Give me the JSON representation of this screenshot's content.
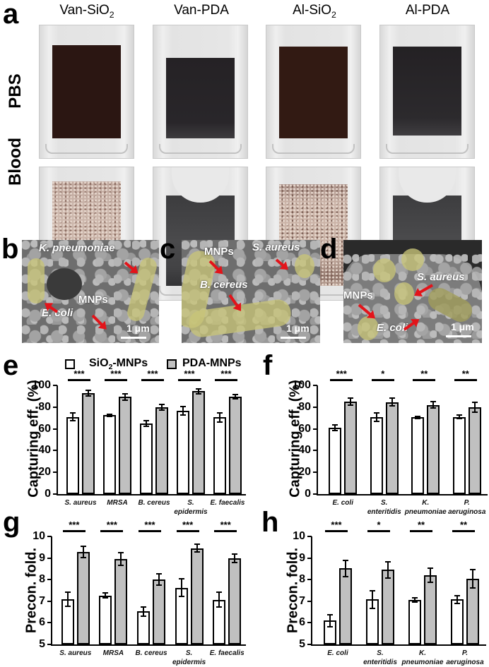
{
  "panel_a": {
    "letter": "a",
    "columns": [
      "Van-SiO2",
      "Van-PDA",
      "Al-SiO2",
      "Al-PDA"
    ],
    "rows": [
      "PBS",
      "Blood"
    ]
  },
  "panel_b": {
    "letter": "b",
    "labels": {
      "k_pneumoniae": "K. pneumoniae",
      "e_coli": "E. coli",
      "mnps": "MNPs"
    },
    "scale": "1 μm"
  },
  "panel_c": {
    "letter": "c",
    "labels": {
      "mnps": "MNPs",
      "s_aureus": "S. aureus",
      "b_cereus": "B. cereus"
    },
    "scale": "1 μm"
  },
  "panel_d": {
    "letter": "d",
    "labels": {
      "s_aureus": "S. aureus",
      "mnps": "MNPs",
      "e_coli": "E. coli"
    },
    "scale": "1 μm"
  },
  "legend": {
    "sio2": "SiO2-MNPs",
    "pda": "PDA-MNPs"
  },
  "colors": {
    "sio2_bar": "#ffffff",
    "pda_bar": "#c0c0c0",
    "arrow": "#e3141a",
    "bacteria_overlay": "#c8c478"
  },
  "chart_data": [
    {
      "panel": "e",
      "type": "bar",
      "ylabel": "Capturing eff. (%)",
      "ylim": [
        0,
        100
      ],
      "yticks": [
        0,
        20,
        40,
        60,
        80,
        100
      ],
      "categories": [
        "S. aureus",
        "MRSA",
        "B. cereus",
        "S. epidermis",
        "E. faecalis"
      ],
      "series": [
        {
          "name": "SiO2-MNPs",
          "values": [
            71,
            72.5,
            65,
            76.5,
            70.5
          ],
          "errors": [
            3.5,
            1,
            2.5,
            4,
            4
          ]
        },
        {
          "name": "PDA-MNPs",
          "values": [
            93,
            89.5,
            80,
            94.5,
            89.5
          ],
          "errors": [
            2.5,
            3,
            2.5,
            2,
            2
          ]
        }
      ],
      "significance": [
        "***",
        "***",
        "***",
        "***",
        "***"
      ]
    },
    {
      "panel": "f",
      "type": "bar",
      "ylabel": "Capturing eff. (%)",
      "ylim": [
        0,
        100
      ],
      "yticks": [
        0,
        20,
        40,
        60,
        80,
        100
      ],
      "categories": [
        "E. coli",
        "S. enteritidis",
        "K. pneumoniae",
        "P. aeruginosa"
      ],
      "series": [
        {
          "name": "SiO2-MNPs",
          "values": [
            61,
            71,
            70.5,
            71
          ],
          "errors": [
            2.5,
            4,
            1,
            1.5
          ]
        },
        {
          "name": "PDA-MNPs",
          "values": [
            85,
            84.5,
            82,
            80
          ],
          "errors": [
            3.5,
            3.5,
            3,
            4.5
          ]
        }
      ],
      "significance": [
        "***",
        "*",
        "**",
        "**"
      ]
    },
    {
      "panel": "g",
      "type": "bar",
      "ylabel": "Precon. fold.",
      "ylim": [
        5,
        10
      ],
      "yticks": [
        5,
        6,
        7,
        8,
        9,
        10
      ],
      "categories": [
        "S. aureus",
        "MRSA",
        "B. cereus",
        "S. epidermis",
        "E. faecalis"
      ],
      "series": [
        {
          "name": "SiO2-MNPs",
          "values": [
            7.1,
            7.27,
            6.52,
            7.63,
            7.07
          ],
          "errors": [
            0.33,
            0.1,
            0.22,
            0.4,
            0.35
          ]
        },
        {
          "name": "PDA-MNPs",
          "values": [
            9.28,
            8.95,
            8.0,
            9.45,
            8.98
          ],
          "errors": [
            0.25,
            0.3,
            0.27,
            0.18,
            0.2
          ]
        }
      ],
      "significance": [
        "***",
        "***",
        "***",
        "***",
        "***"
      ]
    },
    {
      "panel": "h",
      "type": "bar",
      "ylabel": "Precon. fold.",
      "ylim": [
        5,
        10
      ],
      "yticks": [
        5,
        6,
        7,
        8,
        9,
        10
      ],
      "categories": [
        "E. coli",
        "S. enteritidis",
        "K. pneumoniae",
        "P. aeruginosa"
      ],
      "series": [
        {
          "name": "SiO2-MNPs",
          "values": [
            6.1,
            7.08,
            7.05,
            7.08
          ],
          "errors": [
            0.27,
            0.42,
            0.1,
            0.18
          ]
        },
        {
          "name": "PDA-MNPs",
          "values": [
            8.52,
            8.45,
            8.2,
            8.03
          ],
          "errors": [
            0.38,
            0.38,
            0.33,
            0.42
          ]
        }
      ],
      "significance": [
        "***",
        "*",
        "**",
        "**"
      ]
    }
  ]
}
